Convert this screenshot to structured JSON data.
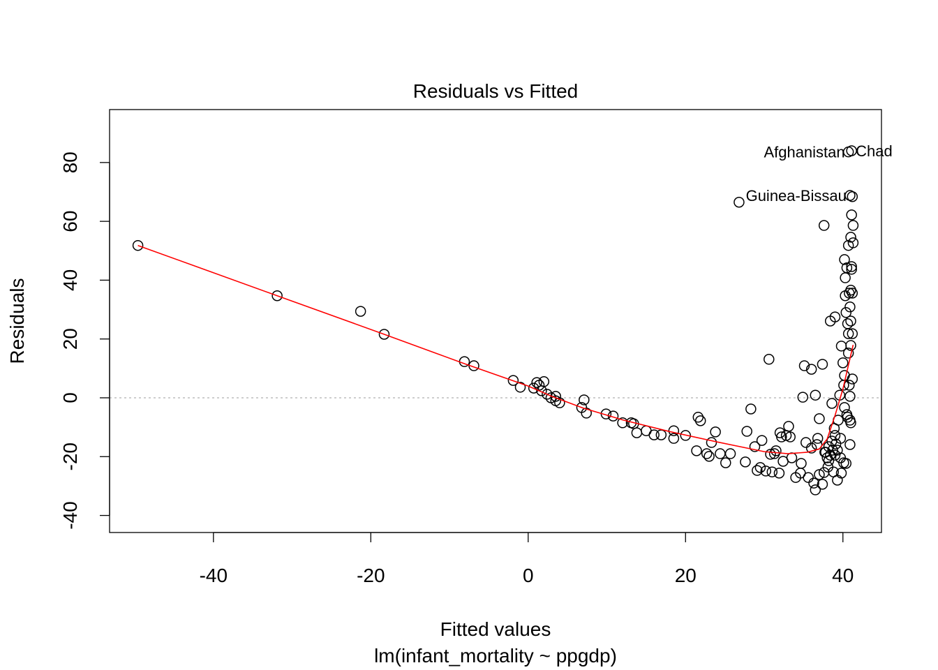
{
  "chart_data": {
    "type": "scatter",
    "title": "Residuals vs Fitted",
    "xlabel": "Fitted values",
    "subtitle": "lm(infant_mortality ~ ppgdp)",
    "ylabel": "Residuals",
    "xlim": [
      -53.2,
      44.9
    ],
    "ylim": [
      -45.8,
      98.0
    ],
    "xticks": [
      -40,
      -20,
      0,
      20,
      40
    ],
    "yticks": [
      -40,
      -20,
      0,
      20,
      40,
      60,
      80
    ],
    "grid": false,
    "reference_line": {
      "y": 0,
      "style": "dotted",
      "color": "#bebebe"
    },
    "colors": {
      "points": "#000000",
      "smooth": "#ff0000"
    },
    "points": [
      [
        -49.6,
        51.8
      ],
      [
        -31.9,
        34.7
      ],
      [
        -21.3,
        29.4
      ],
      [
        -18.3,
        21.6
      ],
      [
        -8.1,
        12.3
      ],
      [
        -6.9,
        10.9
      ],
      [
        -1.9,
        5.9
      ],
      [
        -1.0,
        3.6
      ],
      [
        0.7,
        3.3
      ],
      [
        1.1,
        5.2
      ],
      [
        1.4,
        4.3
      ],
      [
        2.0,
        5.5
      ],
      [
        1.7,
        2.4
      ],
      [
        2.4,
        1.2
      ],
      [
        2.9,
        0
      ],
      [
        3.5,
        -1.0
      ],
      [
        4.0,
        -1.7
      ],
      [
        3.5,
        0.5
      ],
      [
        7.1,
        -0.7
      ],
      [
        6.8,
        -3.3
      ],
      [
        7.4,
        -5.2
      ],
      [
        9.9,
        -5.5
      ],
      [
        10.8,
        -6.2
      ],
      [
        12.0,
        -8.5
      ],
      [
        13.1,
        -8.5
      ],
      [
        13.4,
        -8.8
      ],
      [
        13.8,
        -11.9
      ],
      [
        15.0,
        -11.2
      ],
      [
        16.0,
        -12.6
      ],
      [
        16.9,
        -12.6
      ],
      [
        18.5,
        -11.2
      ],
      [
        18.5,
        -13.8
      ],
      [
        20.0,
        -12.8
      ],
      [
        21.4,
        -18.0
      ],
      [
        21.6,
        -6.6
      ],
      [
        21.9,
        -7.8
      ],
      [
        22.7,
        -19.0
      ],
      [
        23.0,
        -19.9
      ],
      [
        23.3,
        -15.2
      ],
      [
        23.8,
        -11.6
      ],
      [
        24.4,
        -19.0
      ],
      [
        25.1,
        -22.1
      ],
      [
        25.7,
        -19.0
      ],
      [
        26.8,
        66.5
      ],
      [
        27.6,
        -21.8
      ],
      [
        27.8,
        -11.4
      ],
      [
        28.3,
        -3.8
      ],
      [
        28.8,
        -16.6
      ],
      [
        29.1,
        -24.7
      ],
      [
        29.5,
        -23.7
      ],
      [
        29.7,
        -14.5
      ],
      [
        30.2,
        -24.9
      ],
      [
        30.6,
        13.1
      ],
      [
        30.8,
        -19.2
      ],
      [
        31.0,
        -25.2
      ],
      [
        31.3,
        -19.0
      ],
      [
        31.5,
        -18.0
      ],
      [
        31.9,
        -25.6
      ],
      [
        32.0,
        -11.9
      ],
      [
        32.2,
        -13.3
      ],
      [
        32.4,
        -21.6
      ],
      [
        32.8,
        -12.8
      ],
      [
        33.1,
        -9.7
      ],
      [
        33.3,
        -13.3
      ],
      [
        33.5,
        -20.4
      ],
      [
        34.0,
        -27.1
      ],
      [
        34.6,
        -25.6
      ],
      [
        34.7,
        -22.3
      ],
      [
        34.9,
        0.2
      ],
      [
        35.1,
        10.9
      ],
      [
        35.3,
        -15.2
      ],
      [
        35.6,
        -27.1
      ],
      [
        36.0,
        -17.1
      ],
      [
        36.0,
        9.7
      ],
      [
        36.3,
        -29.0
      ],
      [
        36.5,
        0.9
      ],
      [
        36.5,
        -31.3
      ],
      [
        36.7,
        -15.9
      ],
      [
        36.8,
        -13.8
      ],
      [
        37.0,
        -7.1
      ],
      [
        37.0,
        -26.1
      ],
      [
        37.4,
        11.4
      ],
      [
        37.4,
        -29.4
      ],
      [
        37.6,
        58.6
      ],
      [
        37.7,
        -18.5
      ],
      [
        38.0,
        -20.4
      ],
      [
        38.2,
        -21.4
      ],
      [
        38.4,
        26.1
      ],
      [
        38.6,
        -1.9
      ],
      [
        38.7,
        -17.8
      ],
      [
        38.8,
        -25.2
      ],
      [
        38.9,
        -10.4
      ],
      [
        39.0,
        -12.8
      ],
      [
        39.0,
        27.5
      ],
      [
        39.1,
        -15.7
      ],
      [
        39.3,
        -28.0
      ],
      [
        39.4,
        -7.6
      ],
      [
        39.6,
        0.9
      ],
      [
        39.7,
        -20.4
      ],
      [
        39.8,
        17.6
      ],
      [
        39.8,
        -25.6
      ],
      [
        40.0,
        11.9
      ],
      [
        40.1,
        4.3
      ],
      [
        40.2,
        7.6
      ],
      [
        40.2,
        47.0
      ],
      [
        40.2,
        -3.3
      ],
      [
        40.3,
        34.7
      ],
      [
        40.3,
        40.8
      ],
      [
        40.4,
        -22.3
      ],
      [
        40.4,
        29.0
      ],
      [
        40.5,
        44.2
      ],
      [
        40.5,
        -5.7
      ],
      [
        40.6,
        25.2
      ],
      [
        40.6,
        -6.6
      ],
      [
        40.7,
        21.8
      ],
      [
        40.7,
        15.2
      ],
      [
        40.7,
        83.6
      ],
      [
        40.7,
        51.8
      ],
      [
        40.8,
        35.6
      ],
      [
        40.8,
        4.3
      ],
      [
        40.9,
        30.9
      ],
      [
        40.9,
        0.5
      ],
      [
        40.9,
        -7.6
      ],
      [
        40.9,
        68.8
      ],
      [
        40.9,
        -15.9
      ],
      [
        41.0,
        26.1
      ],
      [
        41.0,
        54.6
      ],
      [
        41.0,
        36.6
      ],
      [
        41.0,
        17.8
      ],
      [
        41.0,
        -8.5
      ],
      [
        41.1,
        62.2
      ],
      [
        41.1,
        43.7
      ],
      [
        41.1,
        84.0
      ],
      [
        41.2,
        21.8
      ],
      [
        41.2,
        6.4
      ],
      [
        41.2,
        68.4
      ],
      [
        41.3,
        52.7
      ],
      [
        41.3,
        58.6
      ],
      [
        41.2,
        35.6
      ],
      [
        41.1,
        44.6
      ],
      [
        37.8,
        -18.5
      ],
      [
        38.2,
        -16.6
      ],
      [
        38.4,
        -19.5
      ],
      [
        38.6,
        -14.7
      ],
      [
        38.1,
        -23.5
      ],
      [
        37.6,
        -25.4
      ],
      [
        39.0,
        -19.5
      ],
      [
        39.3,
        -17.8
      ],
      [
        39.7,
        -13.8
      ],
      [
        40.1,
        -22.1
      ]
    ],
    "smooth": [
      [
        -49.6,
        51.8
      ],
      [
        -31.9,
        34.7
      ],
      [
        -18.3,
        21.6
      ],
      [
        -8,
        11.5
      ],
      [
        0,
        4
      ],
      [
        3,
        0.5
      ],
      [
        7,
        -3.5
      ],
      [
        12,
        -7.5
      ],
      [
        18,
        -11.5
      ],
      [
        24,
        -15
      ],
      [
        30,
        -18.3
      ],
      [
        33,
        -19
      ],
      [
        35.5,
        -18.5
      ],
      [
        37,
        -17.4
      ],
      [
        38.0,
        -14
      ],
      [
        39,
        -6
      ],
      [
        40,
        3
      ],
      [
        41.3,
        18
      ]
    ],
    "annotations": [
      {
        "text": "Afghanistan",
        "x": 40.7,
        "y": 83.6,
        "side": "left"
      },
      {
        "text": "Chad",
        "x": 41.1,
        "y": 84.0,
        "side": "right"
      },
      {
        "text": "Guinea-Bissau",
        "x": 40.9,
        "y": 68.8,
        "side": "left"
      }
    ]
  }
}
